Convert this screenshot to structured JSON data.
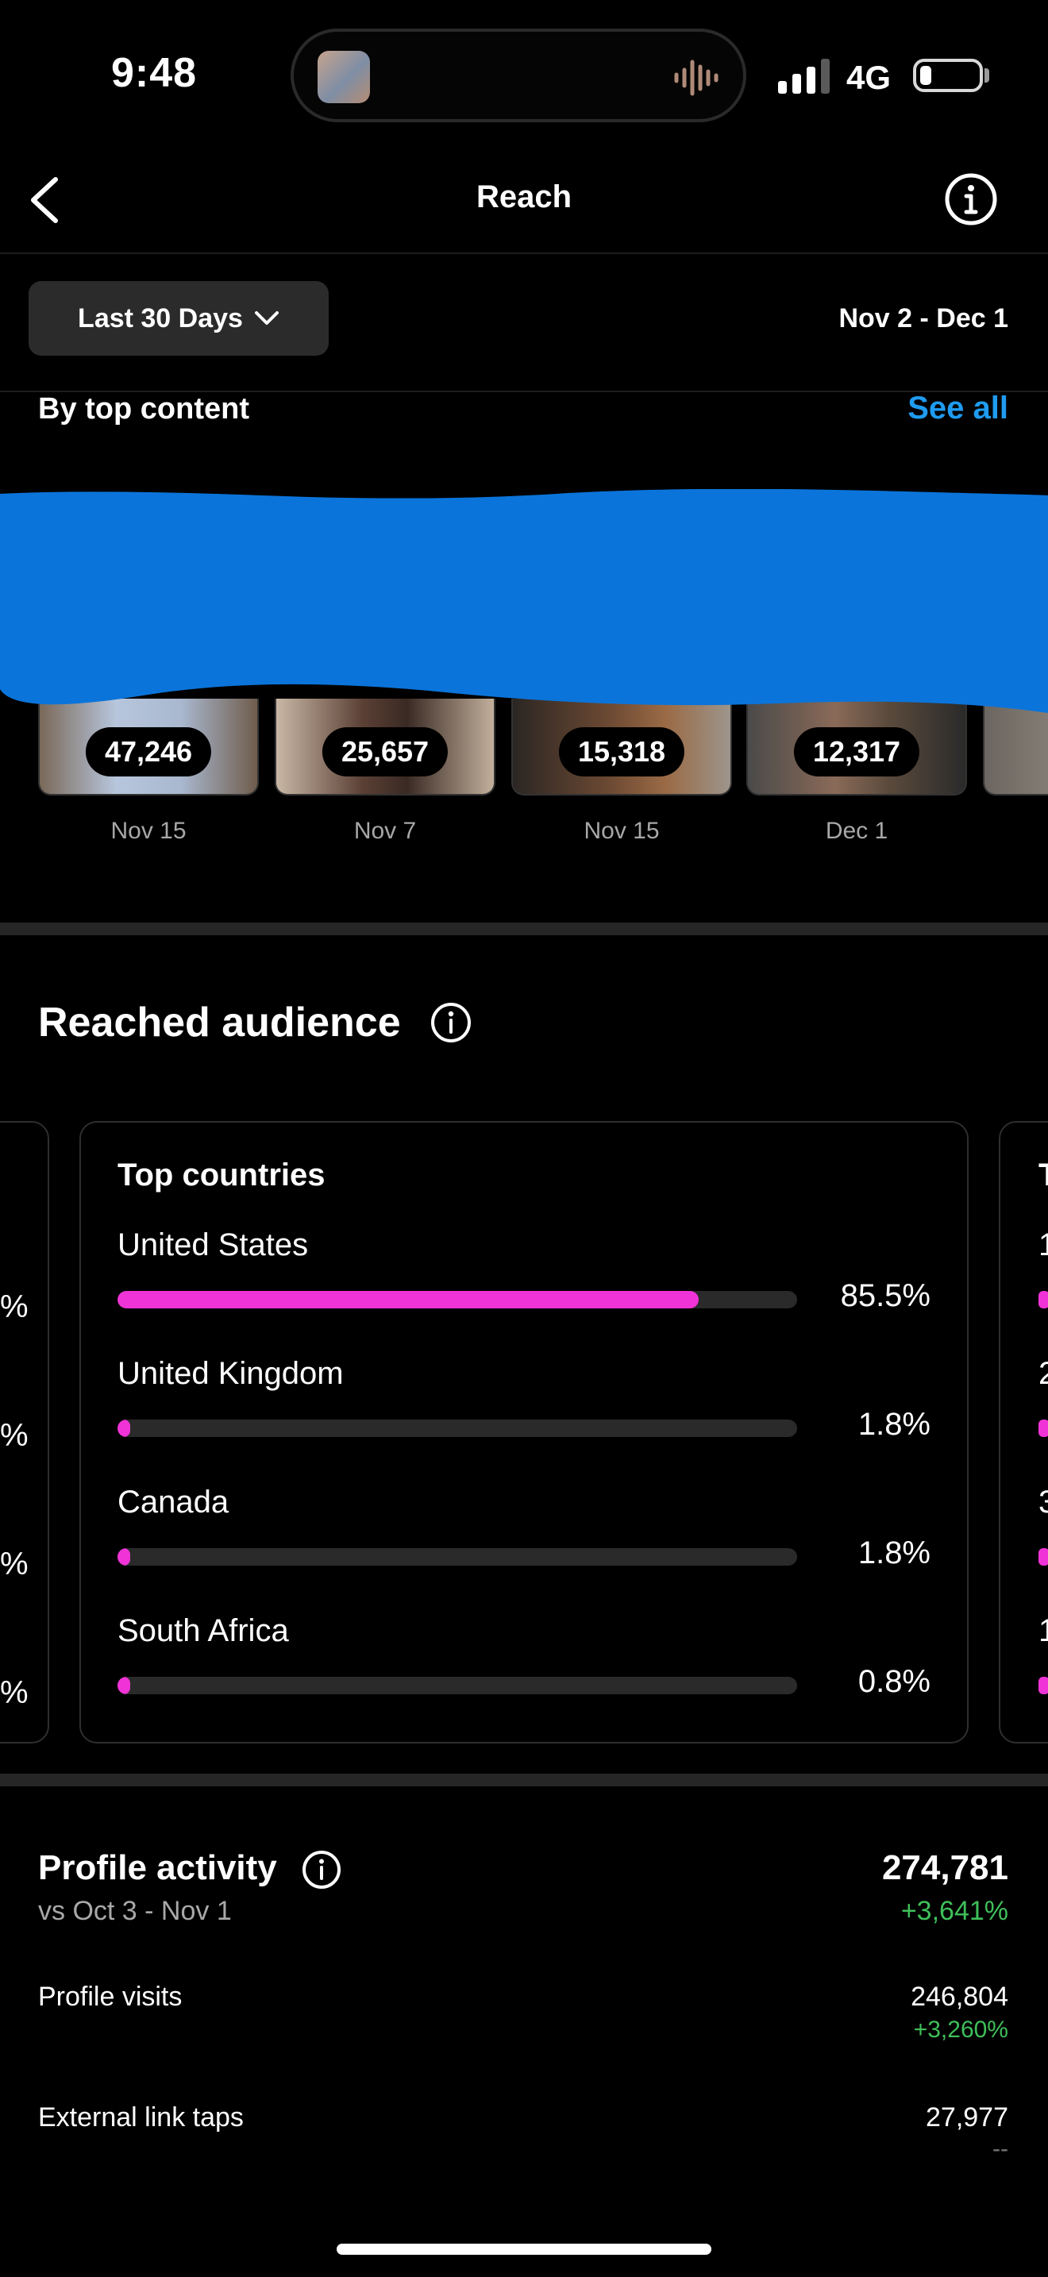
{
  "status_bar": {
    "time": "9:48",
    "network": "4G"
  },
  "header": {
    "title": "Reach"
  },
  "filters": {
    "range_label": "Last 30 Days",
    "date_range": "Nov 2 - Dec 1"
  },
  "top_content": {
    "label": "By top content",
    "see_all": "See all",
    "items": [
      {
        "value": "47,246",
        "date": "Nov 15"
      },
      {
        "value": "25,657",
        "date": "Nov 7"
      },
      {
        "value": "15,318",
        "date": "Nov 15"
      },
      {
        "value": "12,317",
        "date": "Dec 1"
      }
    ]
  },
  "audience": {
    "title": "Reached audience",
    "card_title": "Top countries",
    "countries": [
      {
        "name": "United States",
        "pct": "85.5%",
        "share": 0.855
      },
      {
        "name": "United Kingdom",
        "pct": "1.8%",
        "share": 0.018
      },
      {
        "name": "Canada",
        "pct": "1.8%",
        "share": 0.018
      },
      {
        "name": "South Africa",
        "pct": "0.8%",
        "share": 0.008
      }
    ],
    "accent": "#f033d6"
  },
  "profile_activity": {
    "title": "Profile activity",
    "compare": "vs Oct 3 - Nov 1",
    "total": "274,781",
    "total_change": "+3,641%",
    "rows": [
      {
        "label": "Profile visits",
        "value": "246,804",
        "change": "+3,260%"
      },
      {
        "label": "External link taps",
        "value": "27,977",
        "change": "--"
      }
    ]
  }
}
